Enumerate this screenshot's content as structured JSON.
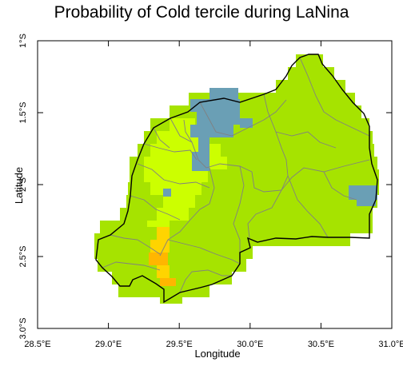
{
  "title": "Probability of Cold tercile during LaNina",
  "map": {
    "region": "Rwanda",
    "extent": {
      "lon": [
        28.5,
        31.0
      ],
      "lat": [
        -3.0,
        -1.0
      ]
    },
    "x_axis": {
      "label": "Longitude",
      "ticks": [
        {
          "value": 28.5,
          "label": "28.5°E"
        },
        {
          "value": 29.0,
          "label": "29.0°E"
        },
        {
          "value": 29.5,
          "label": "29.5°E"
        },
        {
          "value": 30.0,
          "label": "30.0°E"
        },
        {
          "value": 30.5,
          "label": "30.5°E"
        },
        {
          "value": 31.0,
          "label": "31.0°E"
        }
      ]
    },
    "y_axis": {
      "label": "Latitude",
      "ticks": [
        {
          "value": -1.0,
          "label": "1°S"
        },
        {
          "value": -1.5,
          "label": "1.5°S"
        },
        {
          "value": -2.0,
          "label": "2°S"
        },
        {
          "value": -2.5,
          "label": "2.5°S"
        },
        {
          "value": -3.0,
          "label": "3.0°S"
        }
      ]
    },
    "field_colors": {
      "main": "#a6e300",
      "light": "#ccff00",
      "yellow": "#ffd400",
      "orange": "#ffb600",
      "blue": "#6a9fb5"
    },
    "boundary_colors": {
      "national": "#000000",
      "district": "#808080"
    }
  }
}
